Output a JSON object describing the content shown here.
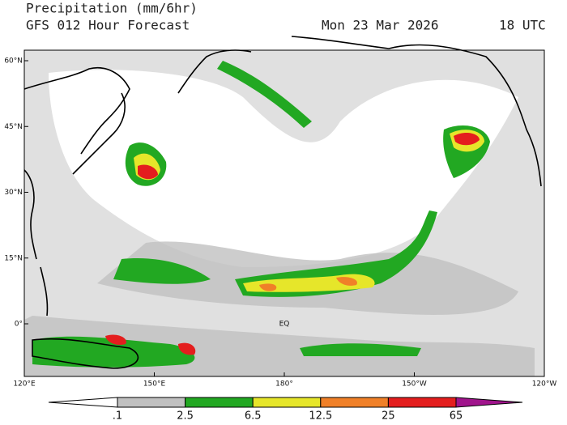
{
  "header": {
    "title": "Precipitation (mm/6hr)",
    "subtitle": "GFS 012 Hour Forecast",
    "date": "Mon 23 Mar 2026",
    "time": "18 UTC"
  },
  "map": {
    "lon_range": [
      120,
      240
    ],
    "lat_range": [
      -12,
      62.4
    ],
    "lat_ticks": [
      {
        "value": 60,
        "label": "60°N"
      },
      {
        "value": 45,
        "label": "45°N"
      },
      {
        "value": 30,
        "label": "30°N"
      },
      {
        "value": 15,
        "label": "15°N"
      },
      {
        "value": 0,
        "label": "0°"
      }
    ],
    "lon_ticks": [
      {
        "value": 120,
        "label": "120°E"
      },
      {
        "value": 150,
        "label": "150°E"
      },
      {
        "value": 180,
        "label": "180°"
      },
      {
        "value": 210,
        "label": "150°W"
      },
      {
        "value": 240,
        "label": "120°W"
      }
    ],
    "equator_label": "EQ"
  },
  "colorbar": {
    "levels": [
      {
        "value": 0.1,
        "label": ".1"
      },
      2.5,
      6.5,
      12.5,
      25,
      65
    ],
    "colors": [
      "#ffffff",
      "#c0c0c0",
      "#22a822",
      "#e6e62a",
      "#f08028",
      "#e41e1e",
      "#a0148c"
    ]
  }
}
